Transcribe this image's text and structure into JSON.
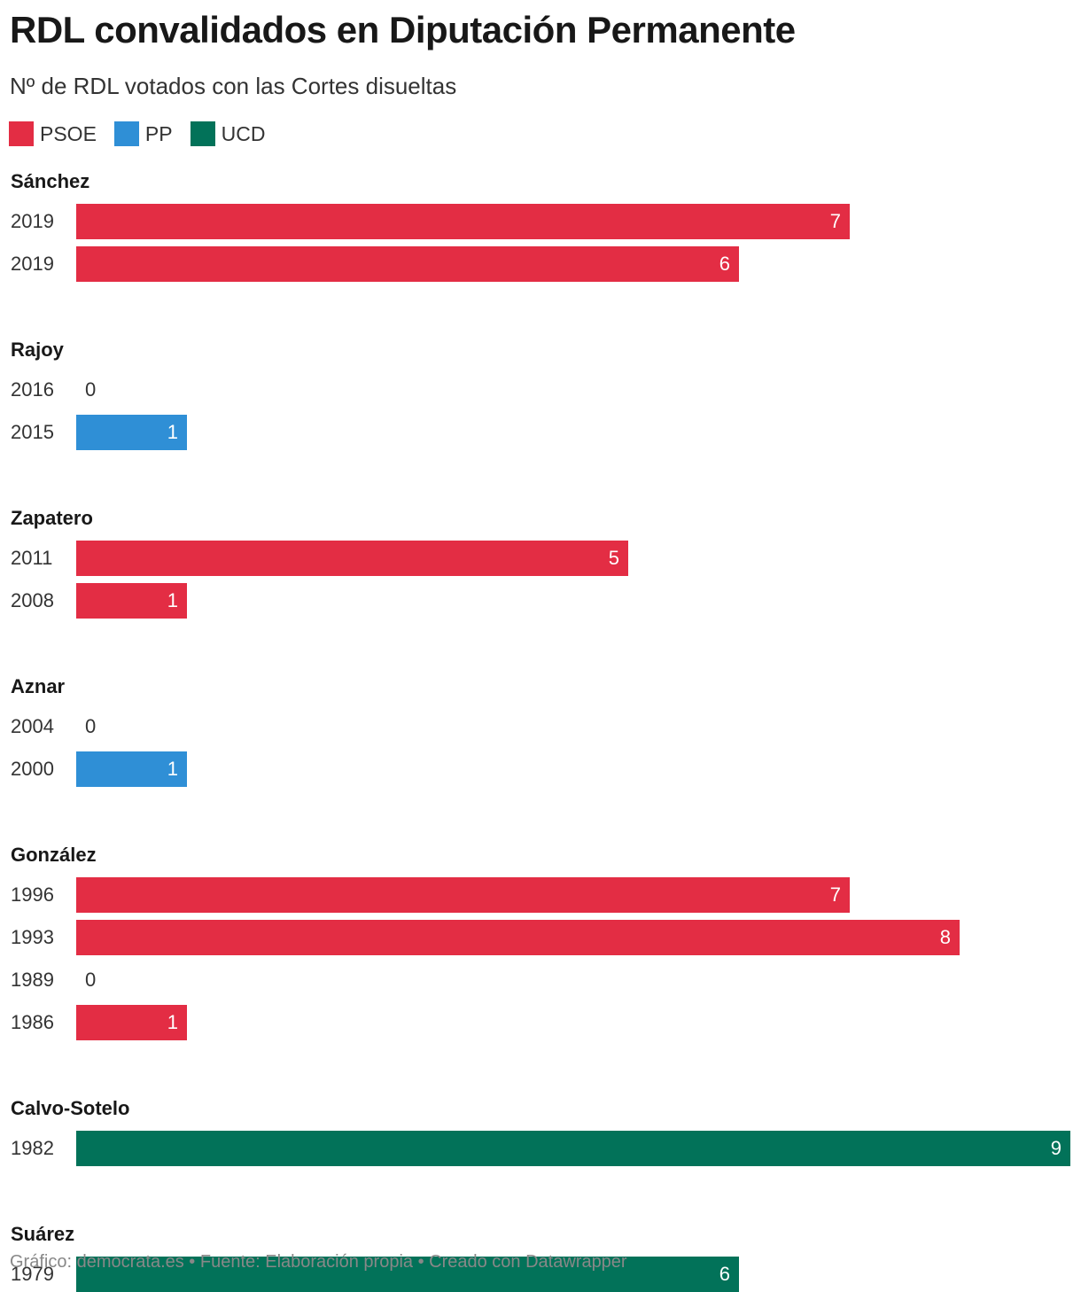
{
  "header": {
    "title": "RDL convalidados en Diputación Permanente",
    "subtitle": "Nº de RDL votados con las Cortes disueltas"
  },
  "legend": [
    {
      "label": "PSOE",
      "color": "#e32d44"
    },
    {
      "label": "PP",
      "color": "#2f8fd6"
    },
    {
      "label": "UCD",
      "color": "#027259"
    }
  ],
  "footer": {
    "credit": "Gráfico: democrata.es • Fuente: Elaboración propia • Creado con Datawrapper"
  },
  "chart_data": {
    "type": "bar",
    "orientation": "horizontal",
    "xlim": [
      0,
      9
    ],
    "grid": false,
    "legend_position": "top-left",
    "groups": [
      {
        "name": "Sánchez",
        "rows": [
          {
            "year": "2019",
            "value": 7,
            "party": "PSOE"
          },
          {
            "year": "2019",
            "value": 6,
            "party": "PSOE"
          }
        ]
      },
      {
        "name": "Rajoy",
        "rows": [
          {
            "year": "2016",
            "value": 0,
            "party": "PP"
          },
          {
            "year": "2015",
            "value": 1,
            "party": "PP"
          }
        ]
      },
      {
        "name": "Zapatero",
        "rows": [
          {
            "year": "2011",
            "value": 5,
            "party": "PSOE"
          },
          {
            "year": "2008",
            "value": 1,
            "party": "PSOE"
          }
        ]
      },
      {
        "name": "Aznar",
        "rows": [
          {
            "year": "2004",
            "value": 0,
            "party": "PP"
          },
          {
            "year": "2000",
            "value": 1,
            "party": "PP"
          }
        ]
      },
      {
        "name": "González",
        "rows": [
          {
            "year": "1996",
            "value": 7,
            "party": "PSOE"
          },
          {
            "year": "1993",
            "value": 8,
            "party": "PSOE"
          },
          {
            "year": "1989",
            "value": 0,
            "party": "PSOE"
          },
          {
            "year": "1986",
            "value": 1,
            "party": "PSOE"
          }
        ]
      },
      {
        "name": "Calvo-Sotelo",
        "rows": [
          {
            "year": "1982",
            "value": 9,
            "party": "UCD"
          }
        ]
      },
      {
        "name": "Suárez",
        "rows": [
          {
            "year": "1979",
            "value": 6,
            "party": "UCD"
          }
        ]
      }
    ]
  }
}
